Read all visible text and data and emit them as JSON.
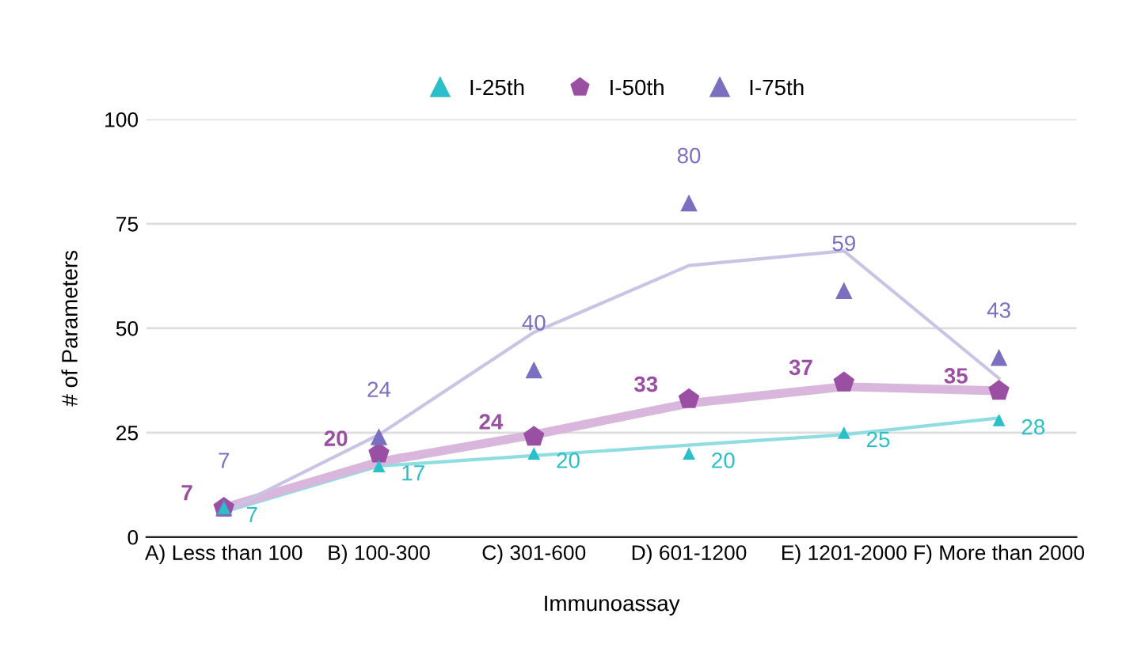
{
  "chart_data": {
    "type": "scatter",
    "xlabel": "Immunoassay",
    "ylabel": "# of Parameters",
    "categories": [
      "A) Less than 100",
      "B) 100-300",
      "C) 301-600",
      "D) 601-1200",
      "E) 1201-2000",
      "F) More than 2000"
    ],
    "ylim": [
      0,
      100
    ],
    "yticks": [
      0,
      25,
      50,
      75,
      100
    ],
    "grid": "y",
    "legend": "top",
    "series": [
      {
        "type": "line",
        "color": "#8fdde0",
        "marker": "none",
        "values": [
          6,
          17,
          19.5,
          22,
          24.5,
          28.5
        ]
      },
      {
        "type": "line",
        "color": "#d9b6db",
        "marker": "none",
        "values": [
          7,
          18,
          24.5,
          32,
          36,
          35
        ]
      },
      {
        "type": "line",
        "color": "#c9c4e4",
        "marker": "none",
        "values": [
          6,
          24.5,
          49,
          65,
          68.5,
          38
        ]
      },
      {
        "name": "I-25th",
        "color": "#2bbfc9",
        "marker": "triangle",
        "values": [
          7,
          17,
          20,
          20,
          25,
          28
        ],
        "value_labels": [
          "7",
          "17",
          "20",
          "20",
          "25",
          "28"
        ]
      },
      {
        "name": "I-50th",
        "color": "#9b4fa3",
        "values": [
          7,
          20,
          24,
          33,
          37,
          35
        ],
        "value_labels": [
          "7",
          "20",
          "24",
          "33",
          "37",
          "35"
        ]
      },
      {
        "name": "I-75th",
        "color": "#7b6fc0",
        "marker": "triangle",
        "values": [
          7,
          24,
          40,
          80,
          59,
          43
        ],
        "value_labels": [
          "7",
          "24",
          "40",
          "80",
          "59",
          "43"
        ]
      }
    ]
  }
}
